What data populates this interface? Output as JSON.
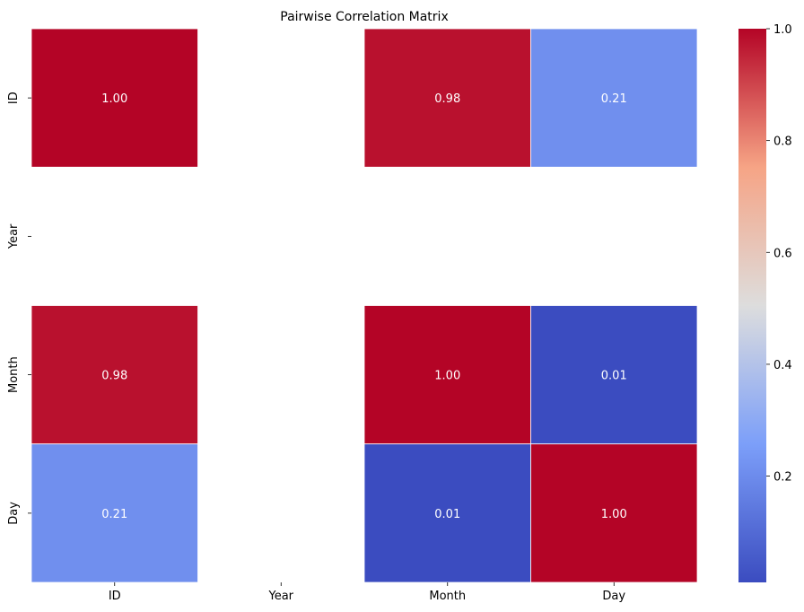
{
  "chart_data": {
    "type": "heatmap",
    "title": "Pairwise Correlation Matrix",
    "xlabel": "",
    "ylabel": "",
    "x_categories": [
      "ID",
      "Year",
      "Month",
      "Day"
    ],
    "y_categories": [
      "ID",
      "Year",
      "Month",
      "Day"
    ],
    "values": [
      [
        1.0,
        null,
        0.98,
        0.21
      ],
      [
        null,
        null,
        null,
        null
      ],
      [
        0.98,
        null,
        1.0,
        0.01
      ],
      [
        0.21,
        null,
        0.01,
        1.0
      ]
    ],
    "value_format": "0.00",
    "colormap": "coolwarm",
    "colorbar": {
      "min": 0.01,
      "max": 1.0,
      "ticks": [
        0.2,
        0.4,
        0.6,
        0.8,
        1.0
      ],
      "tick_labels": [
        "0.2",
        "0.4",
        "0.6",
        "0.8",
        "1.0"
      ]
    },
    "grid": false,
    "colors": {
      "low": "#3b4cc0",
      "mid": "#dddddd",
      "high": "#b40426",
      "cell_border": "#ffffff"
    }
  }
}
